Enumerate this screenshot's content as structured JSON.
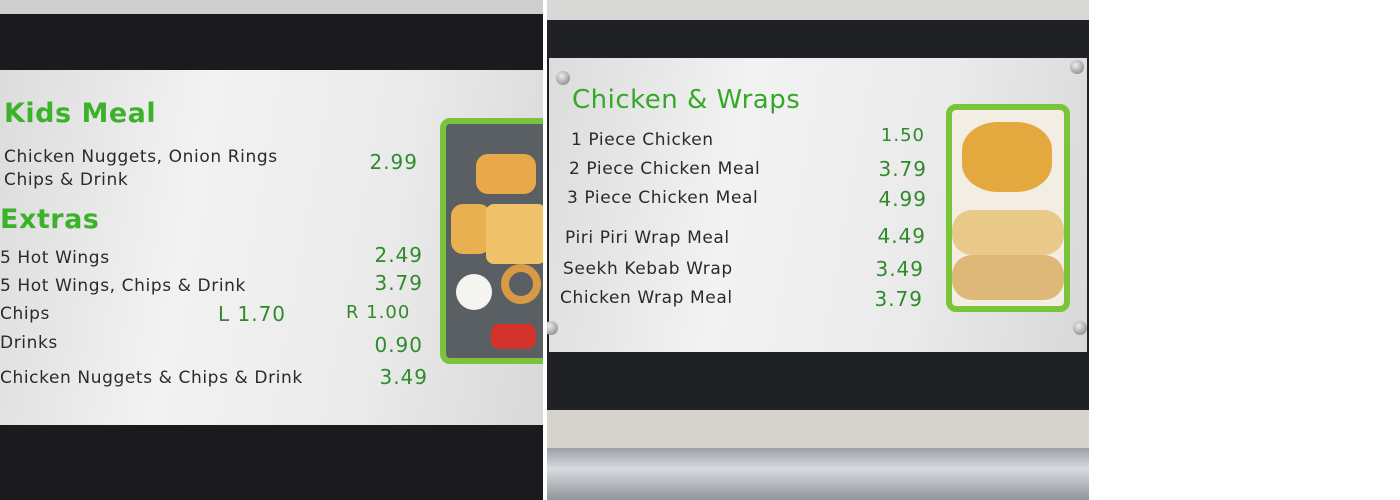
{
  "left_board": {
    "sections": [
      {
        "title": "Kids Meal",
        "items": [
          {
            "name": "Chicken Nuggets, Onion Rings",
            "price": "2.99"
          },
          {
            "name": "Chips & Drink",
            "price": ""
          }
        ]
      },
      {
        "title": "Extras",
        "items": [
          {
            "name": "5 Hot Wings",
            "price": "2.49"
          },
          {
            "name": "5 Hot Wings, Chips & Drink",
            "price": "3.79"
          },
          {
            "name": "Chips",
            "price_l": "L 1.70",
            "price_r": "R 1.00"
          },
          {
            "name": "Drinks",
            "price": "0.90"
          },
          {
            "name": "Chicken Nuggets & Chips & Drink",
            "price": "3.49"
          }
        ]
      }
    ]
  },
  "right_board": {
    "title": "Chicken & Wraps",
    "items": [
      {
        "name": "1 Piece Chicken",
        "price": "1.50"
      },
      {
        "name": "2 Piece Chicken Meal",
        "price": "3.79"
      },
      {
        "name": "3 Piece Chicken Meal",
        "price": "4.99"
      },
      {
        "name": "Piri Piri Wrap Meal",
        "price": "4.49"
      },
      {
        "name": "Seekh Kebab Wrap",
        "price": "3.49"
      },
      {
        "name": "Chicken Wrap Meal",
        "price": "3.79"
      }
    ]
  },
  "colors": {
    "title_green": "#3bb22a",
    "price_green": "#2f8a2a",
    "frame_green": "#79c43a"
  }
}
